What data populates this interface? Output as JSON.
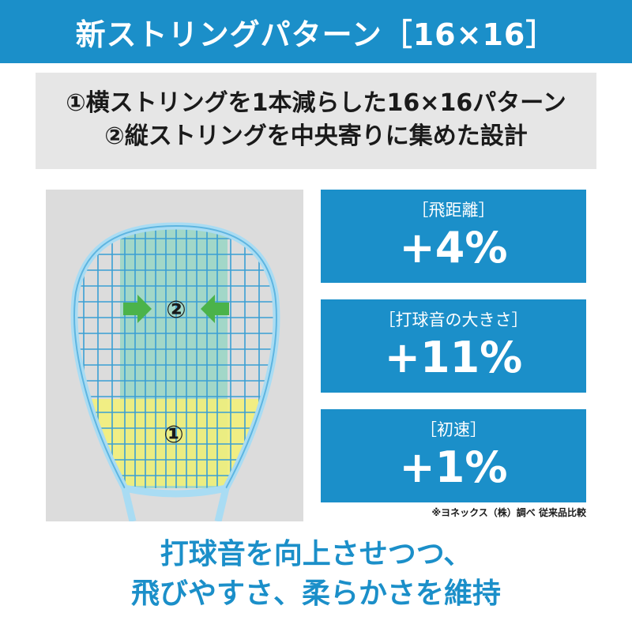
{
  "header": {
    "title": "新ストリングパターン［16×16］"
  },
  "features": {
    "line1": "①横ストリングを1本減らした16×16パターン",
    "line2": "②縦ストリングを中央寄りに集めた設計"
  },
  "diagram": {
    "marker_center": "②",
    "marker_lower": "①"
  },
  "stats": [
    {
      "label": "［飛距離］",
      "value": "+4%"
    },
    {
      "label": "［打球音の大きさ］",
      "value": "+11%"
    },
    {
      "label": "［初速］",
      "value": "+1%"
    }
  ],
  "note": "※ヨネックス（株）調べ 従来品比較",
  "tagline": {
    "line1": "打球音を向上させつつ、",
    "line2": "飛びやすさ、柔らかさを維持"
  },
  "colors": {
    "accent_blue": "#1b8fc9",
    "panel_gray": "#e6e6e6",
    "highlight_green": "#8fd6c2",
    "highlight_yellow": "#f3f07a",
    "arrow_green": "#4bb34a"
  }
}
